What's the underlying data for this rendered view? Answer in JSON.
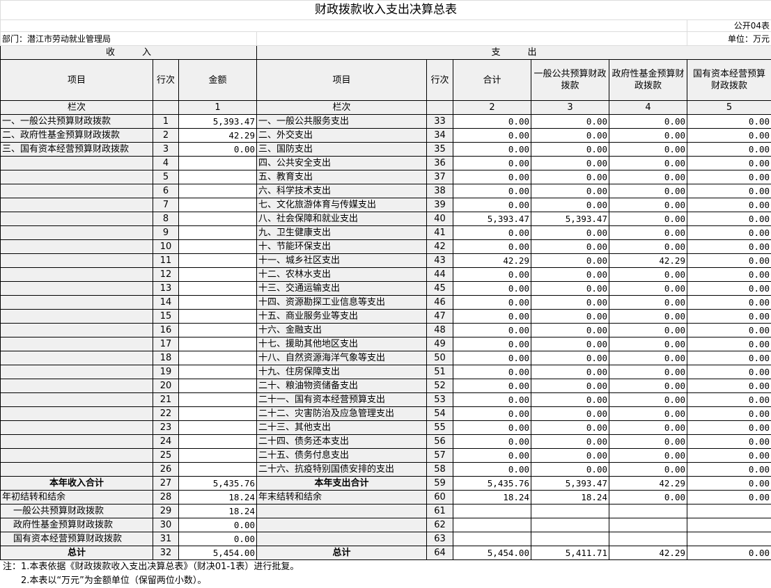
{
  "title": "财政拨款收入支出决算总表",
  "form_no": "公开04表",
  "department": "部门：潜江市劳动就业管理局",
  "unit": "单位：万元",
  "income_header": "收　　　入",
  "expense_header": "支　　　出",
  "columns": {
    "item": "项目",
    "row_no": "行次",
    "amount": "金额",
    "total": "合计",
    "general": "一般公共预算财政拨款",
    "gov_fund": "政府性基金预算财政拨款",
    "state_capital": "国有资本经营预算财政拨款"
  },
  "col_index": {
    "label": "栏次",
    "c1": "1",
    "c2": "2",
    "c3": "3",
    "c4": "4",
    "c5": "5"
  },
  "rows": [
    {
      "in_item": "一、一般公共预算财政拨款",
      "in_no": "1",
      "in_amt": "5,393.47",
      "ex_item": "一、一般公共服务支出",
      "ex_no": "33",
      "v": [
        "0.00",
        "0.00",
        "0.00",
        "0.00"
      ]
    },
    {
      "in_item": "二、政府性基金预算财政拨款",
      "in_no": "2",
      "in_amt": "42.29",
      "ex_item": "二、外交支出",
      "ex_no": "34",
      "v": [
        "0.00",
        "0.00",
        "0.00",
        "0.00"
      ]
    },
    {
      "in_item": "三、国有资本经营预算财政拨款",
      "in_no": "3",
      "in_amt": "0.00",
      "ex_item": "三、国防支出",
      "ex_no": "35",
      "v": [
        "0.00",
        "0.00",
        "0.00",
        "0.00"
      ]
    },
    {
      "in_item": "",
      "in_no": "4",
      "in_amt": "",
      "ex_item": "四、公共安全支出",
      "ex_no": "36",
      "v": [
        "0.00",
        "0.00",
        "0.00",
        "0.00"
      ]
    },
    {
      "in_item": "",
      "in_no": "5",
      "in_amt": "",
      "ex_item": "五、教育支出",
      "ex_no": "37",
      "v": [
        "0.00",
        "0.00",
        "0.00",
        "0.00"
      ]
    },
    {
      "in_item": "",
      "in_no": "6",
      "in_amt": "",
      "ex_item": "六、科学技术支出",
      "ex_no": "38",
      "v": [
        "0.00",
        "0.00",
        "0.00",
        "0.00"
      ]
    },
    {
      "in_item": "",
      "in_no": "7",
      "in_amt": "",
      "ex_item": "七、文化旅游体育与传媒支出",
      "ex_no": "39",
      "v": [
        "0.00",
        "0.00",
        "0.00",
        "0.00"
      ]
    },
    {
      "in_item": "",
      "in_no": "8",
      "in_amt": "",
      "ex_item": "八、社会保障和就业支出",
      "ex_no": "40",
      "v": [
        "5,393.47",
        "5,393.47",
        "0.00",
        "0.00"
      ]
    },
    {
      "in_item": "",
      "in_no": "9",
      "in_amt": "",
      "ex_item": "九、卫生健康支出",
      "ex_no": "41",
      "v": [
        "0.00",
        "0.00",
        "0.00",
        "0.00"
      ]
    },
    {
      "in_item": "",
      "in_no": "10",
      "in_amt": "",
      "ex_item": "十、节能环保支出",
      "ex_no": "42",
      "v": [
        "0.00",
        "0.00",
        "0.00",
        "0.00"
      ]
    },
    {
      "in_item": "",
      "in_no": "11",
      "in_amt": "",
      "ex_item": "十一、城乡社区支出",
      "ex_no": "43",
      "v": [
        "42.29",
        "0.00",
        "42.29",
        "0.00"
      ]
    },
    {
      "in_item": "",
      "in_no": "12",
      "in_amt": "",
      "ex_item": "十二、农林水支出",
      "ex_no": "44",
      "v": [
        "0.00",
        "0.00",
        "0.00",
        "0.00"
      ]
    },
    {
      "in_item": "",
      "in_no": "13",
      "in_amt": "",
      "ex_item": "十三、交通运输支出",
      "ex_no": "45",
      "v": [
        "0.00",
        "0.00",
        "0.00",
        "0.00"
      ]
    },
    {
      "in_item": "",
      "in_no": "14",
      "in_amt": "",
      "ex_item": "十四、资源勘探工业信息等支出",
      "ex_no": "46",
      "v": [
        "0.00",
        "0.00",
        "0.00",
        "0.00"
      ]
    },
    {
      "in_item": "",
      "in_no": "15",
      "in_amt": "",
      "ex_item": "十五、商业服务业等支出",
      "ex_no": "47",
      "v": [
        "0.00",
        "0.00",
        "0.00",
        "0.00"
      ]
    },
    {
      "in_item": "",
      "in_no": "16",
      "in_amt": "",
      "ex_item": "十六、金融支出",
      "ex_no": "48",
      "v": [
        "0.00",
        "0.00",
        "0.00",
        "0.00"
      ]
    },
    {
      "in_item": "",
      "in_no": "17",
      "in_amt": "",
      "ex_item": "十七、援助其他地区支出",
      "ex_no": "49",
      "v": [
        "0.00",
        "0.00",
        "0.00",
        "0.00"
      ]
    },
    {
      "in_item": "",
      "in_no": "18",
      "in_amt": "",
      "ex_item": "十八、自然资源海洋气象等支出",
      "ex_no": "50",
      "v": [
        "0.00",
        "0.00",
        "0.00",
        "0.00"
      ]
    },
    {
      "in_item": "",
      "in_no": "19",
      "in_amt": "",
      "ex_item": "十九、住房保障支出",
      "ex_no": "51",
      "v": [
        "0.00",
        "0.00",
        "0.00",
        "0.00"
      ]
    },
    {
      "in_item": "",
      "in_no": "20",
      "in_amt": "",
      "ex_item": "二十、粮油物资储备支出",
      "ex_no": "52",
      "v": [
        "0.00",
        "0.00",
        "0.00",
        "0.00"
      ]
    },
    {
      "in_item": "",
      "in_no": "21",
      "in_amt": "",
      "ex_item": "二十一、国有资本经营预算支出",
      "ex_no": "53",
      "v": [
        "0.00",
        "0.00",
        "0.00",
        "0.00"
      ]
    },
    {
      "in_item": "",
      "in_no": "22",
      "in_amt": "",
      "ex_item": "二十二、灾害防治及应急管理支出",
      "ex_no": "54",
      "v": [
        "0.00",
        "0.00",
        "0.00",
        "0.00"
      ]
    },
    {
      "in_item": "",
      "in_no": "23",
      "in_amt": "",
      "ex_item": "二十三、其他支出",
      "ex_no": "55",
      "v": [
        "0.00",
        "0.00",
        "0.00",
        "0.00"
      ]
    },
    {
      "in_item": "",
      "in_no": "24",
      "in_amt": "",
      "ex_item": "二十四、债务还本支出",
      "ex_no": "56",
      "v": [
        "0.00",
        "0.00",
        "0.00",
        "0.00"
      ]
    },
    {
      "in_item": "",
      "in_no": "25",
      "in_amt": "",
      "ex_item": "二十五、债务付息支出",
      "ex_no": "57",
      "v": [
        "0.00",
        "0.00",
        "0.00",
        "0.00"
      ]
    },
    {
      "in_item": "",
      "in_no": "26",
      "in_amt": "",
      "ex_item": "二十六、抗疫特别国债安排的支出",
      "ex_no": "58",
      "v": [
        "0.00",
        "0.00",
        "0.00",
        "0.00"
      ]
    },
    {
      "in_item": "本年收入合计",
      "in_no": "27",
      "in_amt": "5,435.76",
      "ex_item": "本年支出合计",
      "ex_no": "59",
      "v": [
        "5,435.76",
        "5,393.47",
        "42.29",
        "0.00"
      ],
      "bold": true
    },
    {
      "in_item": "年初结转和结余",
      "in_no": "28",
      "in_amt": "18.24",
      "ex_item": "年末结转和结余",
      "ex_no": "60",
      "v": [
        "18.24",
        "18.24",
        "0.00",
        "0.00"
      ]
    },
    {
      "in_item": "一般公共预算财政拨款",
      "in_no": "29",
      "in_amt": "18.24",
      "ex_item": "",
      "ex_no": "61",
      "v": [
        "",
        "",
        "",
        ""
      ],
      "indent": true
    },
    {
      "in_item": "政府性基金预算财政拨款",
      "in_no": "30",
      "in_amt": "0.00",
      "ex_item": "",
      "ex_no": "62",
      "v": [
        "",
        "",
        "",
        ""
      ],
      "indent": true
    },
    {
      "in_item": "国有资本经营预算财政拨款",
      "in_no": "31",
      "in_amt": "0.00",
      "ex_item": "",
      "ex_no": "63",
      "v": [
        "",
        "",
        "",
        ""
      ],
      "indent": true
    },
    {
      "in_item": "总计",
      "in_no": "32",
      "in_amt": "5,454.00",
      "ex_item": "总计",
      "ex_no": "64",
      "v": [
        "5,454.00",
        "5,411.71",
        "42.29",
        "0.00"
      ],
      "bold": true
    }
  ],
  "notes": [
    "注：1.本表依据《财政拨款收入支出决算总表》（财决01-1表）进行批复。",
    "　　2.本表以“万元”为金额单位（保留两位小数）。"
  ]
}
